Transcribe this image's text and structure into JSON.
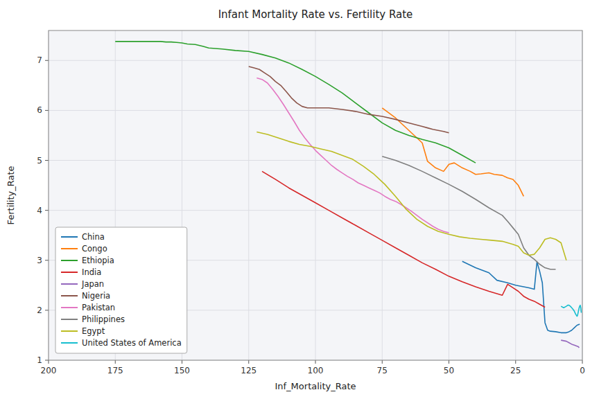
{
  "chart_data": {
    "type": "line",
    "title": "Infant Mortality Rate vs. Fertility Rate",
    "xlabel": "Inf_Mortality_Rate",
    "ylabel": "Fertility_Rate",
    "xlim": [
      200,
      0
    ],
    "ylim": [
      1,
      7.6
    ],
    "xticks": [
      200,
      175,
      150,
      125,
      100,
      75,
      50,
      25,
      0
    ],
    "yticks": [
      1,
      2,
      3,
      4,
      5,
      6,
      7
    ],
    "grid": true,
    "legend": "lower left",
    "series": [
      {
        "name": "China",
        "color": "#1f77b4",
        "x": [
          45,
          40,
          35,
          32,
          28,
          25,
          22,
          20,
          18,
          17,
          16,
          15,
          14,
          13,
          12,
          10,
          8,
          6,
          5,
          4,
          3,
          2,
          1
        ],
        "values": [
          2.98,
          2.85,
          2.75,
          2.6,
          2.55,
          2.5,
          2.47,
          2.45,
          2.42,
          2.97,
          2.78,
          2.55,
          1.75,
          1.6,
          1.58,
          1.57,
          1.55,
          1.55,
          1.57,
          1.6,
          1.65,
          1.7,
          1.72
        ]
      },
      {
        "name": "Congo",
        "color": "#ff7f0e",
        "x": [
          75,
          70,
          65,
          60,
          58,
          55,
          52,
          50,
          48,
          45,
          42,
          40,
          38,
          35,
          33,
          30,
          28,
          26,
          24,
          22
        ],
        "values": [
          6.05,
          5.85,
          5.6,
          5.35,
          4.98,
          4.85,
          4.78,
          4.92,
          4.95,
          4.85,
          4.78,
          4.72,
          4.73,
          4.75,
          4.72,
          4.7,
          4.65,
          4.62,
          4.5,
          4.28
        ]
      },
      {
        "name": "Ethiopia",
        "color": "#2ca02c",
        "x": [
          175,
          173,
          170,
          167,
          165,
          162,
          160,
          158,
          156,
          154,
          152,
          150,
          148,
          145,
          142,
          140,
          135,
          130,
          125,
          120,
          115,
          110,
          105,
          100,
          95,
          90,
          85,
          80,
          75,
          70,
          65,
          60,
          55,
          50,
          45,
          40
        ],
        "values": [
          7.38,
          7.38,
          7.38,
          7.38,
          7.38,
          7.38,
          7.38,
          7.38,
          7.37,
          7.37,
          7.36,
          7.35,
          7.33,
          7.32,
          7.28,
          7.25,
          7.23,
          7.2,
          7.18,
          7.12,
          7.05,
          6.95,
          6.82,
          6.68,
          6.52,
          6.35,
          6.15,
          5.95,
          5.75,
          5.6,
          5.5,
          5.42,
          5.35,
          5.25,
          5.1,
          4.95
        ]
      },
      {
        "name": "India",
        "color": "#d62728",
        "x": [
          120,
          115,
          110,
          105,
          100,
          95,
          90,
          85,
          80,
          75,
          70,
          65,
          60,
          55,
          50,
          45,
          40,
          35,
          30,
          28,
          26,
          24,
          22,
          20,
          18,
          16,
          14
        ],
        "values": [
          4.78,
          4.62,
          4.45,
          4.3,
          4.15,
          4.0,
          3.85,
          3.7,
          3.55,
          3.4,
          3.25,
          3.1,
          2.95,
          2.82,
          2.68,
          2.57,
          2.47,
          2.38,
          2.3,
          2.52,
          2.45,
          2.38,
          2.28,
          2.22,
          2.18,
          2.12,
          2.06
        ]
      },
      {
        "name": "Japan",
        "color": "#9467bd",
        "x": [
          8,
          6,
          5,
          4,
          3,
          2,
          1.5,
          1.2
        ],
        "values": [
          1.4,
          1.38,
          1.35,
          1.32,
          1.3,
          1.28,
          1.27,
          1.25
        ]
      },
      {
        "name": "Nigeria",
        "color": "#8c564b",
        "x": [
          125,
          123,
          121,
          119,
          117,
          115,
          113,
          111,
          109,
          107,
          105,
          103,
          101,
          99,
          97,
          95,
          90,
          85,
          80,
          75,
          70,
          65,
          60,
          58,
          56,
          54,
          52,
          50
        ],
        "values": [
          6.88,
          6.85,
          6.82,
          6.75,
          6.68,
          6.58,
          6.5,
          6.38,
          6.25,
          6.15,
          6.08,
          6.05,
          6.05,
          6.05,
          6.05,
          6.05,
          6.02,
          5.98,
          5.92,
          5.88,
          5.82,
          5.75,
          5.68,
          5.65,
          5.62,
          5.6,
          5.58,
          5.55
        ]
      },
      {
        "name": "Pakistan",
        "color": "#e377c2",
        "x": [
          122,
          120,
          118,
          116,
          114,
          112,
          110,
          108,
          106,
          104,
          102,
          100,
          98,
          96,
          94,
          92,
          90,
          88,
          86,
          84,
          82,
          80,
          78,
          76,
          74,
          72,
          70,
          68,
          66,
          64,
          62,
          60,
          58,
          56,
          54,
          52,
          50
        ],
        "values": [
          6.65,
          6.62,
          6.55,
          6.42,
          6.28,
          6.12,
          5.95,
          5.78,
          5.6,
          5.45,
          5.32,
          5.2,
          5.1,
          5.0,
          4.9,
          4.82,
          4.75,
          4.68,
          4.62,
          4.55,
          4.5,
          4.45,
          4.4,
          4.35,
          4.28,
          4.22,
          4.18,
          4.12,
          4.05,
          3.98,
          3.9,
          3.82,
          3.75,
          3.68,
          3.62,
          3.58,
          3.55
        ]
      },
      {
        "name": "Philippines",
        "color": "#7f7f7f",
        "x": [
          75,
          70,
          65,
          60,
          55,
          50,
          45,
          40,
          35,
          30,
          28,
          26,
          24,
          22,
          20,
          18,
          16,
          14,
          12,
          10
        ],
        "values": [
          5.08,
          5.0,
          4.9,
          4.78,
          4.65,
          4.52,
          4.38,
          4.22,
          4.05,
          3.9,
          3.78,
          3.65,
          3.52,
          3.25,
          3.1,
          3.02,
          2.92,
          2.85,
          2.82,
          2.82
        ]
      },
      {
        "name": "Egypt",
        "color": "#bcbd22",
        "x": [
          122,
          118,
          114,
          110,
          106,
          102,
          98,
          94,
          90,
          86,
          82,
          78,
          74,
          70,
          66,
          62,
          58,
          54,
          50,
          46,
          42,
          38,
          34,
          30,
          28,
          26,
          24,
          22,
          20,
          18,
          16,
          14,
          12,
          10,
          8,
          6
        ],
        "values": [
          5.57,
          5.52,
          5.45,
          5.38,
          5.32,
          5.28,
          5.23,
          5.18,
          5.1,
          5.02,
          4.88,
          4.72,
          4.52,
          4.28,
          4.02,
          3.82,
          3.68,
          3.58,
          3.52,
          3.47,
          3.44,
          3.42,
          3.4,
          3.38,
          3.35,
          3.32,
          3.28,
          3.15,
          3.1,
          3.12,
          3.25,
          3.42,
          3.45,
          3.42,
          3.35,
          3.0
        ]
      },
      {
        "name": "United States of America",
        "color": "#17becf",
        "x": [
          8,
          7,
          6,
          5.5,
          5,
          4.5,
          4,
          3.5,
          3,
          2.5,
          2,
          1.8,
          1.6,
          1.4,
          1.2,
          1.0,
          0.8,
          0.6,
          0.4
        ],
        "values": [
          2.08,
          2.05,
          2.08,
          2.1,
          2.1,
          2.08,
          2.05,
          2.02,
          1.98,
          1.92,
          1.88,
          1.9,
          1.95,
          2.0,
          2.05,
          2.08,
          2.1,
          2.05,
          1.95
        ]
      }
    ]
  }
}
